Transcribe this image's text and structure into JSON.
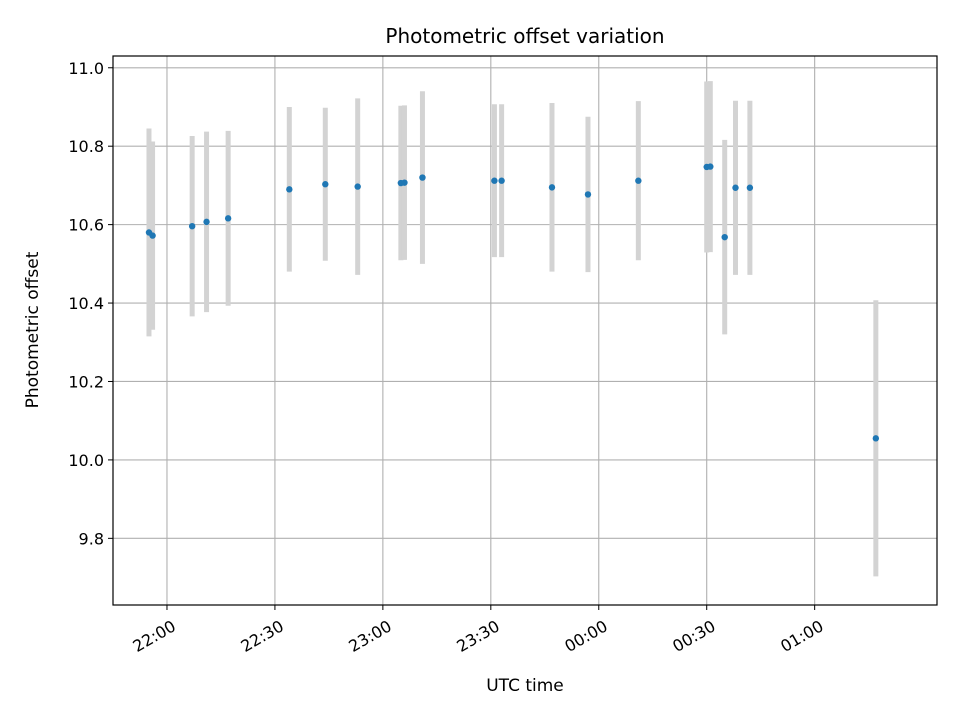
{
  "chart_data": {
    "type": "scatter",
    "title": "Photometric offset variation",
    "xlabel": "UTC time",
    "ylabel": "Photometric offset",
    "grid": true,
    "legend": "none",
    "xlim": [
      "21:45",
      "01:34"
    ],
    "ylim": [
      9.63,
      11.03
    ],
    "x_ticks": [
      "22:00",
      "22:30",
      "23:00",
      "23:30",
      "00:00",
      "00:30",
      "01:00"
    ],
    "y_ticks": [
      9.8,
      10.0,
      10.2,
      10.4,
      10.6,
      10.8,
      11.0
    ],
    "colors": {
      "point": "#1f77b4",
      "error_bar": "#d3d3d3",
      "grid": "#b0b0b0"
    },
    "points": [
      {
        "x": "21:55",
        "y": 10.58,
        "yerr": 0.265
      },
      {
        "x": "21:56",
        "y": 10.572,
        "yerr": 0.24
      },
      {
        "x": "22:07",
        "y": 10.596,
        "yerr": 0.23
      },
      {
        "x": "22:11",
        "y": 10.607,
        "yerr": 0.23
      },
      {
        "x": "22:17",
        "y": 10.616,
        "yerr": 0.223
      },
      {
        "x": "22:34",
        "y": 10.69,
        "yerr": 0.21
      },
      {
        "x": "22:44",
        "y": 10.703,
        "yerr": 0.195
      },
      {
        "x": "22:53",
        "y": 10.697,
        "yerr": 0.225
      },
      {
        "x": "23:05",
        "y": 10.706,
        "yerr": 0.197
      },
      {
        "x": "23:06",
        "y": 10.707,
        "yerr": 0.197
      },
      {
        "x": "23:11",
        "y": 10.72,
        "yerr": 0.22
      },
      {
        "x": "23:31",
        "y": 10.712,
        "yerr": 0.195
      },
      {
        "x": "23:33",
        "y": 10.712,
        "yerr": 0.195
      },
      {
        "x": "23:47",
        "y": 10.695,
        "yerr": 0.215
      },
      {
        "x": "23:57",
        "y": 10.677,
        "yerr": 0.198
      },
      {
        "x": "00:11",
        "y": 10.712,
        "yerr": 0.203
      },
      {
        "x": "00:30",
        "y": 10.747,
        "yerr": 0.218
      },
      {
        "x": "00:31",
        "y": 10.748,
        "yerr": 0.218
      },
      {
        "x": "00:35",
        "y": 10.568,
        "yerr": 0.248
      },
      {
        "x": "00:38",
        "y": 10.694,
        "yerr": 0.222
      },
      {
        "x": "00:42",
        "y": 10.694,
        "yerr": 0.222
      },
      {
        "x": "01:17",
        "y": 10.055,
        "yerr": 0.352
      }
    ]
  }
}
